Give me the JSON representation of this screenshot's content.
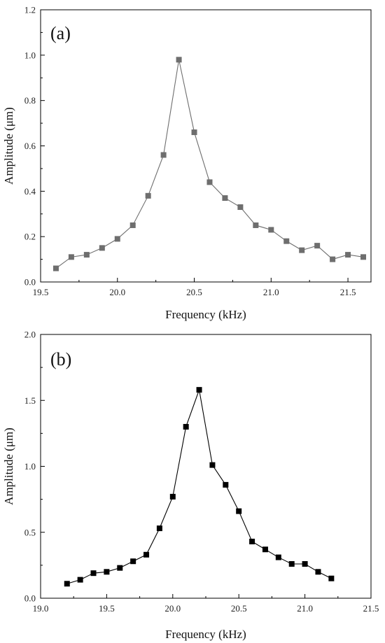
{
  "chart_data": [
    {
      "type": "line",
      "panel_label": "(a)",
      "xlabel": "Frequency (kHz)",
      "ylabel": "Amplitude (μm)",
      "xlim": [
        19.5,
        21.65
      ],
      "ylim": [
        0,
        1.2
      ],
      "xticks": [
        19.5,
        20.0,
        20.5,
        21.0,
        21.5
      ],
      "xtick_labels": [
        "19.5",
        "20.0",
        "20.5",
        "21.0",
        "21.5"
      ],
      "yticks": [
        0.0,
        0.2,
        0.4,
        0.6,
        0.8,
        1.0,
        1.2
      ],
      "ytick_labels": [
        "0.0",
        "0.2",
        "0.4",
        "0.6",
        "0.8",
        "1.0",
        "1.2"
      ],
      "grid": false,
      "color": "#6e6e6e",
      "marker": "square",
      "series": [
        {
          "x": [
            19.6,
            19.7,
            19.8,
            19.9,
            20.0,
            20.1,
            20.2,
            20.3,
            20.4,
            20.5,
            20.6,
            20.7,
            20.8,
            20.9,
            21.0,
            21.1,
            21.2,
            21.3,
            21.4,
            21.5,
            21.6
          ],
          "y": [
            0.06,
            0.11,
            0.12,
            0.15,
            0.19,
            0.25,
            0.38,
            0.56,
            0.98,
            0.66,
            0.44,
            0.37,
            0.33,
            0.25,
            0.23,
            0.18,
            0.14,
            0.16,
            0.1,
            0.12,
            0.11
          ]
        }
      ]
    },
    {
      "type": "line",
      "panel_label": "(b)",
      "xlabel": "Frequency (kHz)",
      "ylabel": "Amplitude (μm)",
      "xlim": [
        19.0,
        21.5
      ],
      "ylim": [
        0,
        2.0
      ],
      "xticks": [
        19.0,
        19.5,
        20.0,
        20.5,
        21.0,
        21.5
      ],
      "xtick_labels": [
        "19.0",
        "19.5",
        "20.0",
        "20.5",
        "21.0",
        "21.5"
      ],
      "yticks": [
        0.0,
        0.5,
        1.0,
        1.5,
        2.0
      ],
      "ytick_labels": [
        "0.0",
        "0.5",
        "1.0",
        "1.5",
        "2.0"
      ],
      "grid": false,
      "color": "#000000",
      "marker": "square",
      "series": [
        {
          "x": [
            19.2,
            19.3,
            19.4,
            19.5,
            19.6,
            19.7,
            19.8,
            19.9,
            20.0,
            20.1,
            20.2,
            20.3,
            20.4,
            20.5,
            20.6,
            20.7,
            20.8,
            20.9,
            21.0,
            21.1,
            21.2
          ],
          "y": [
            0.11,
            0.14,
            0.19,
            0.2,
            0.23,
            0.28,
            0.33,
            0.53,
            0.77,
            1.3,
            1.58,
            1.01,
            0.86,
            0.66,
            0.43,
            0.37,
            0.31,
            0.26,
            0.26,
            0.2,
            0.15
          ]
        }
      ]
    }
  ]
}
